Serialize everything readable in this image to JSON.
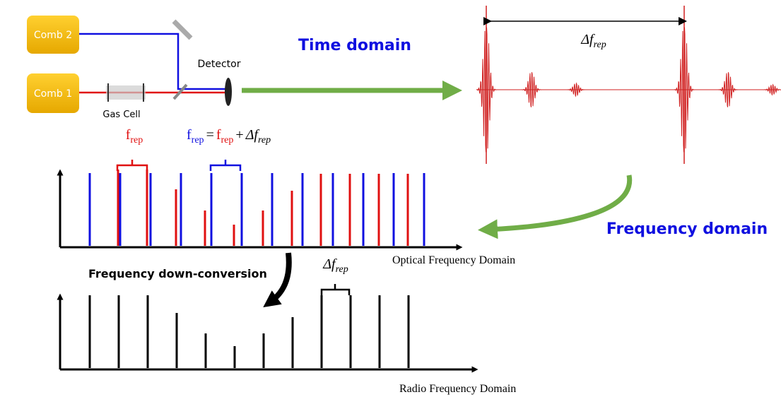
{
  "setup": {
    "comb2": "Comb 2",
    "comb1": "Comb 1",
    "gas_cell": "Gas Cell",
    "detector": "Detector"
  },
  "time_domain": {
    "label": "Time domain",
    "spacing": {
      "symbol": "Δf",
      "sub": "rep"
    }
  },
  "frequency_domain": {
    "label": "Frequency domain"
  },
  "optical": {
    "axis_label": "Optical Frequency Domain",
    "frep": {
      "symbol": "f",
      "sub": "rep"
    },
    "equation": {
      "lhs": {
        "symbol": "f",
        "sub": "rep"
      },
      "eq": "=",
      "rhs1": {
        "symbol": "f",
        "sub": "rep"
      },
      "plus": "+",
      "rhs2": {
        "symbol": "Δf",
        "sub": "rep"
      }
    }
  },
  "conversion": {
    "label": "Frequency down-conversion"
  },
  "radio": {
    "axis_label": "Radio Frequency Domain",
    "spacing": {
      "symbol": "Δf",
      "sub": "rep"
    }
  }
}
